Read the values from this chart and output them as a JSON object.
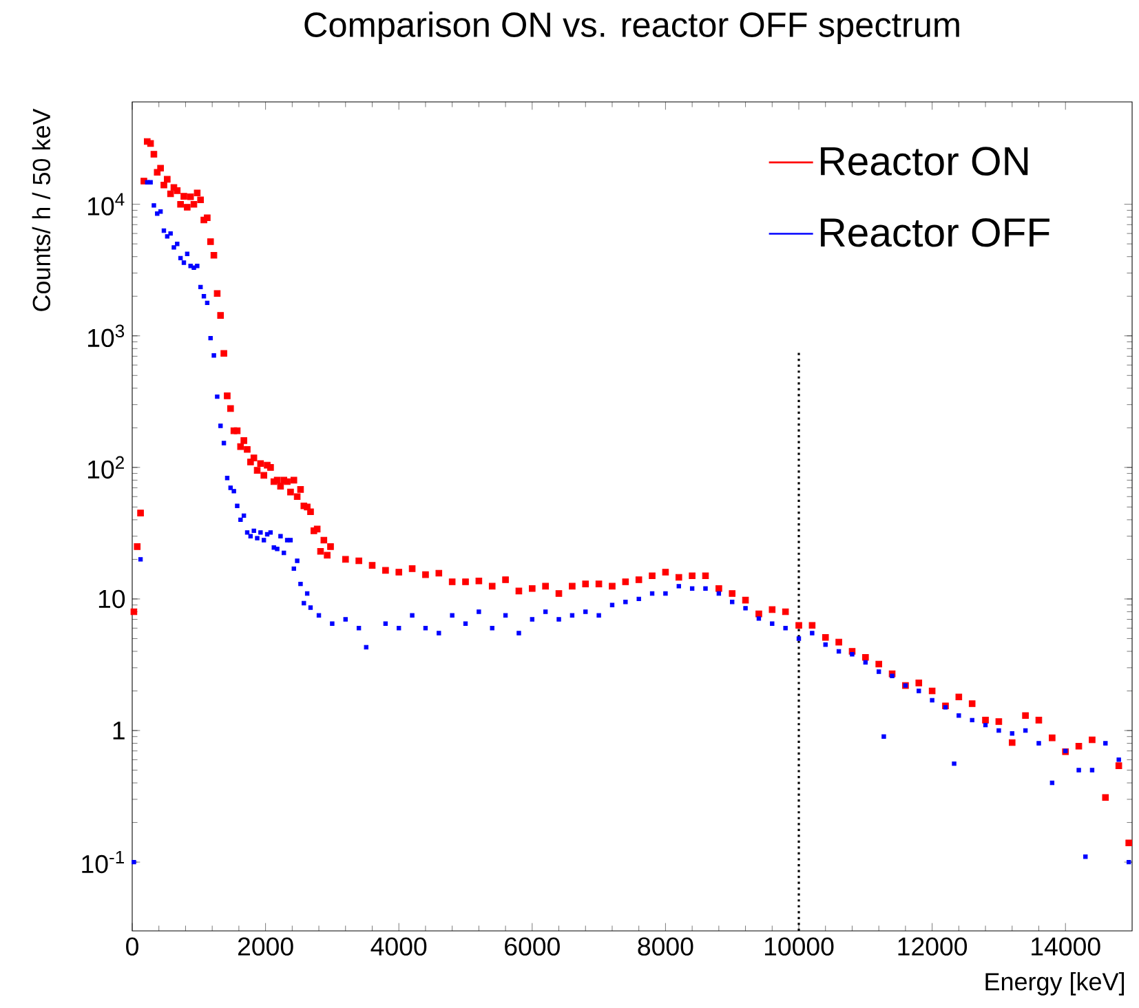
{
  "chart_data": {
    "type": "scatter",
    "title": "Comparison ON vs. reactor OFF spectrum",
    "xlabel": "Energy [keV]",
    "ylabel": "Counts/ h / 50 keV",
    "log": "y",
    "xlim": [
      0,
      15000
    ],
    "ylim": [
      0.03,
      60000
    ],
    "xticks": [
      0,
      2000,
      4000,
      6000,
      8000,
      10000,
      12000,
      14000
    ],
    "yticks": [
      {
        "value": 0.1,
        "label": "10$^{-1}$"
      },
      1,
      10,
      {
        "value": 100,
        "label": "10$^{2}$"
      },
      {
        "value": 1000,
        "label": "10$^{3}$"
      },
      {
        "value": 10000,
        "label": "10$^{4}$"
      }
    ],
    "legend": "top right",
    "grid": false,
    "marker": "square",
    "ref_lines": [
      {
        "axis": "x",
        "value": 10000,
        "line_style": "dotted",
        "color": "#000000"
      }
    ],
    "series": [
      {
        "name": "Reactor ON",
        "color": "#ff0000",
        "x": [
          25,
          75,
          125,
          175,
          225,
          275,
          325,
          375,
          425,
          475,
          525,
          575,
          625,
          675,
          725,
          775,
          825,
          875,
          925,
          975,
          1025,
          1075,
          1125,
          1175,
          1225,
          1275,
          1325,
          1375,
          1425,
          1475,
          1525,
          1575,
          1625,
          1675,
          1725,
          1775,
          1825,
          1875,
          1925,
          1975,
          2025,
          2075,
          2125,
          2175,
          2225,
          2275,
          2325,
          2375,
          2425,
          2475,
          2525,
          2575,
          2625,
          2675,
          2725,
          2775,
          2825,
          2875,
          2925,
          2975,
          3200,
          3400,
          3600,
          3800,
          4000,
          4200,
          4400,
          4600,
          4800,
          5000,
          5200,
          5400,
          5600,
          5800,
          6000,
          6200,
          6400,
          6600,
          6800,
          7000,
          7200,
          7400,
          7600,
          7800,
          8000,
          8200,
          8400,
          8600,
          8800,
          9000,
          9200,
          9400,
          9600,
          9800,
          10000,
          10200,
          10400,
          10600,
          10800,
          11000,
          11200,
          11400,
          11600,
          11800,
          12000,
          12200,
          12400,
          12600,
          12800,
          13000,
          13200,
          13400,
          13600,
          13800,
          14000,
          14200,
          14400,
          14600,
          14800,
          14950
        ],
        "values": [
          8,
          25,
          45,
          15000,
          30000,
          29000,
          24000,
          17500,
          18800,
          14000,
          15500,
          12000,
          13400,
          12700,
          10000,
          11500,
          9500,
          11400,
          10000,
          12200,
          10800,
          7600,
          7900,
          5200,
          4100,
          2100,
          1430,
          735,
          350,
          280,
          190,
          190,
          144,
          160,
          137,
          110,
          118,
          95,
          107,
          87,
          104,
          100,
          78,
          80,
          72,
          80,
          78,
          65,
          80,
          60,
          68,
          51,
          50,
          46,
          33,
          34,
          23,
          28,
          21.5,
          25,
          20,
          19.5,
          18,
          16.5,
          16,
          17,
          15.3,
          15.7,
          13.5,
          13.5,
          13.7,
          12.5,
          14,
          11.5,
          12,
          12.5,
          11,
          12.5,
          13,
          13,
          12.5,
          13.5,
          14,
          15,
          16,
          14.6,
          15,
          15,
          12,
          11,
          9.8,
          7.7,
          8.3,
          8,
          6.3,
          6.3,
          5.1,
          4.7,
          4.0,
          3.6,
          3.2,
          2.7,
          2.2,
          2.3,
          2.0,
          1.54,
          1.8,
          1.6,
          1.2,
          1.17,
          0.81,
          1.3,
          1.2,
          0.88,
          0.69,
          0.76,
          0.85,
          0.31,
          0.54,
          0.14
        ]
      },
      {
        "name": "Reactor OFF",
        "color": "#0000ff",
        "x": [
          25,
          125,
          225,
          275,
          325,
          375,
          425,
          475,
          525,
          575,
          625,
          675,
          725,
          775,
          825,
          875,
          925,
          975,
          1025,
          1075,
          1125,
          1175,
          1225,
          1275,
          1325,
          1375,
          1425,
          1475,
          1525,
          1575,
          1625,
          1675,
          1725,
          1775,
          1825,
          1875,
          1925,
          1975,
          2025,
          2075,
          2125,
          2175,
          2225,
          2275,
          2325,
          2375,
          2425,
          2475,
          2525,
          2575,
          2625,
          2675,
          2800,
          3000,
          3200,
          3400,
          3510,
          3800,
          4000,
          4200,
          4400,
          4600,
          4800,
          5000,
          5200,
          5400,
          5600,
          5800,
          6000,
          6200,
          6400,
          6600,
          6800,
          7000,
          7200,
          7400,
          7600,
          7800,
          8000,
          8200,
          8400,
          8600,
          8800,
          9000,
          9200,
          9400,
          9600,
          9800,
          10000,
          10200,
          10400,
          10600,
          10800,
          11000,
          11200,
          11275,
          11400,
          11600,
          11800,
          12000,
          12200,
          12330,
          12400,
          12600,
          12800,
          13000,
          13200,
          13400,
          13600,
          13800,
          14000,
          14200,
          14300,
          14400,
          14600,
          14800,
          14950
        ],
        "values": [
          0.1,
          20,
          14700,
          14700,
          9800,
          8500,
          8800,
          6300,
          5700,
          6000,
          4700,
          5000,
          3900,
          3600,
          4200,
          3400,
          3300,
          3400,
          2350,
          2000,
          1780,
          960,
          710,
          345,
          207,
          153,
          83,
          70,
          66,
          51,
          40,
          43,
          32,
          30,
          33,
          29,
          32,
          28,
          31,
          32,
          24.6,
          24,
          30,
          22.4,
          28,
          28,
          17,
          19.5,
          13,
          9.3,
          11,
          8.6,
          7.5,
          6.5,
          7,
          6,
          4.3,
          6.5,
          6,
          7.5,
          6,
          5.5,
          7.5,
          6.5,
          8,
          6,
          7.5,
          5.5,
          7,
          8,
          7,
          7.5,
          8,
          7.5,
          9,
          9.5,
          10,
          11,
          11,
          12.5,
          12,
          12,
          11,
          9.5,
          8.5,
          7.1,
          6.5,
          6,
          5,
          5.5,
          4.5,
          4,
          3.8,
          3.3,
          2.8,
          0.9,
          2.6,
          2.2,
          2.0,
          1.7,
          1.5,
          0.56,
          1.3,
          1.2,
          1.1,
          1.0,
          0.95,
          1.0,
          0.8,
          0.4,
          0.7,
          0.5,
          0.11,
          0.5,
          0.8,
          0.6,
          0.1
        ]
      }
    ]
  }
}
